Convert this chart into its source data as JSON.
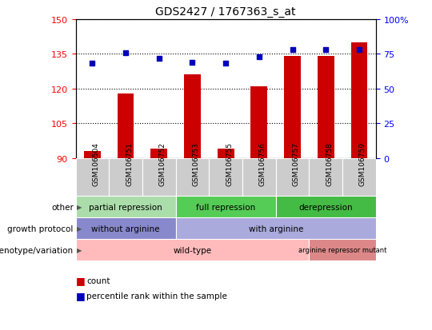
{
  "title": "GDS2427 / 1767363_s_at",
  "samples": [
    "GSM106504",
    "GSM106751",
    "GSM106752",
    "GSM106753",
    "GSM106755",
    "GSM106756",
    "GSM106757",
    "GSM106758",
    "GSM106759"
  ],
  "count_values": [
    93,
    118,
    94,
    126,
    94,
    121,
    134,
    134,
    140
  ],
  "percentile_values": [
    68,
    76,
    72,
    69,
    68,
    73,
    78,
    78,
    78
  ],
  "ylim_left": [
    90,
    150
  ],
  "ylim_right": [
    0,
    100
  ],
  "yticks_left": [
    90,
    105,
    120,
    135,
    150
  ],
  "yticks_right": [
    0,
    25,
    50,
    75,
    100
  ],
  "bar_color": "#CC0000",
  "dot_color": "#0000BB",
  "bar_width": 0.5,
  "groups_other": [
    {
      "label": "partial repression",
      "start": 0,
      "end": 3,
      "color": "#AADDAA"
    },
    {
      "label": "full repression",
      "start": 3,
      "end": 6,
      "color": "#55CC55"
    },
    {
      "label": "derepression",
      "start": 6,
      "end": 9,
      "color": "#44BB44"
    }
  ],
  "groups_growth": [
    {
      "label": "without arginine",
      "start": 0,
      "end": 3,
      "color": "#8888CC"
    },
    {
      "label": "with arginine",
      "start": 3,
      "end": 9,
      "color": "#AAAADD"
    }
  ],
  "groups_geno": [
    {
      "label": "wild-type",
      "start": 0,
      "end": 7,
      "color": "#FFBBBB"
    },
    {
      "label": "arginine repressor mutant",
      "start": 7,
      "end": 9,
      "color": "#DD8888"
    }
  ],
  "row_labels": [
    "other",
    "growth protocol",
    "genotype/variation"
  ],
  "legend_count_color": "#CC0000",
  "legend_dot_color": "#0000BB",
  "xlabel_bg": "#CCCCCC",
  "plot_bg": "#FFFFFF"
}
